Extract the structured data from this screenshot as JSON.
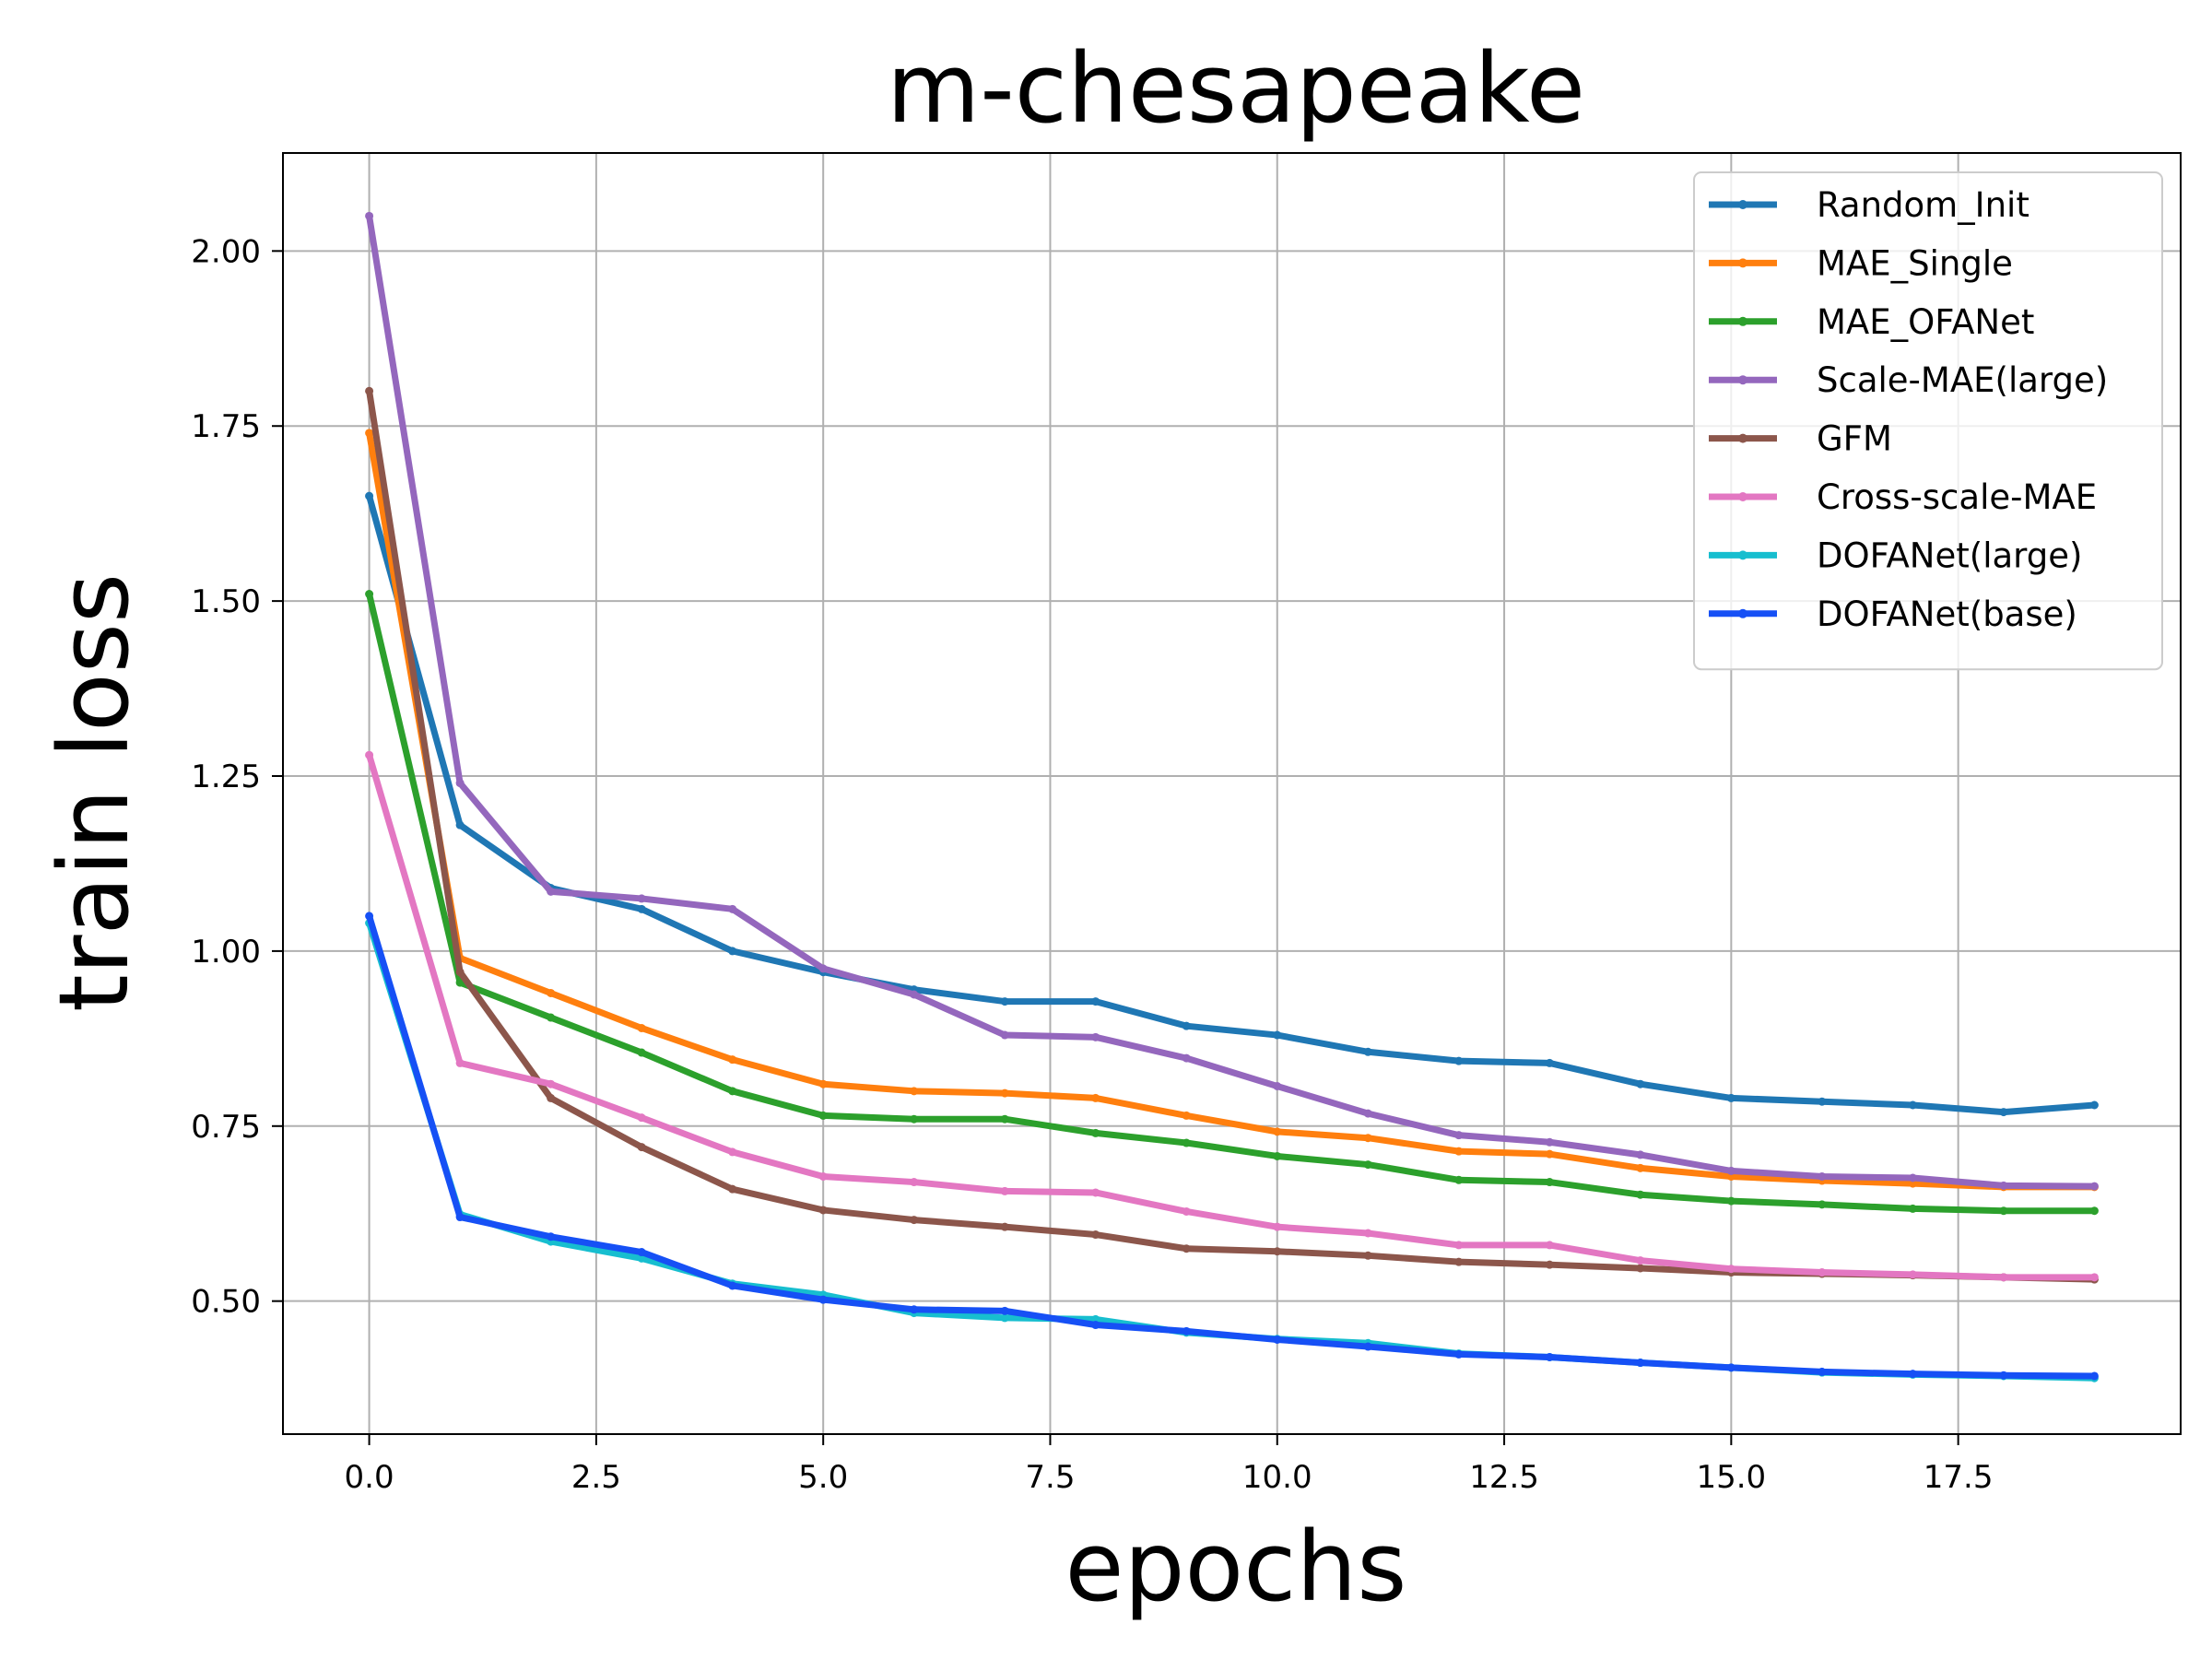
{
  "chart_data": {
    "type": "line",
    "title": "m-chesapeake",
    "xlabel": "epochs",
    "ylabel": "train loss",
    "xlim": [
      -0.95,
      19.95
    ],
    "ylim": [
      0.31,
      2.14
    ],
    "xticks": [
      0.0,
      2.5,
      5.0,
      7.5,
      10.0,
      12.5,
      15.0,
      17.5
    ],
    "xtick_labels": [
      "0.0",
      "2.5",
      "5.0",
      "7.5",
      "10.0",
      "12.5",
      "15.0",
      "17.5"
    ],
    "yticks": [
      0.5,
      0.75,
      1.0,
      1.25,
      1.5,
      1.75,
      2.0
    ],
    "ytick_labels": [
      "0.50",
      "0.75",
      "1.00",
      "1.25",
      "1.50",
      "1.75",
      "2.00"
    ],
    "grid": true,
    "legend_position": "top-right",
    "x": [
      0,
      1,
      2,
      3,
      4,
      5,
      6,
      7,
      8,
      9,
      10,
      11,
      12,
      13,
      14,
      15,
      16,
      17,
      18,
      19
    ],
    "series": [
      {
        "name": "Random_Init",
        "color": "#1f77b4",
        "values": [
          1.65,
          1.18,
          1.09,
          1.06,
          1.0,
          0.97,
          0.945,
          0.928,
          0.928,
          0.893,
          0.88,
          0.856,
          0.843,
          0.84,
          0.81,
          0.79,
          0.785,
          0.78,
          0.77,
          0.78
        ]
      },
      {
        "name": "MAE_Single",
        "color": "#ff7f0e",
        "values": [
          1.74,
          0.99,
          0.94,
          0.89,
          0.845,
          0.81,
          0.8,
          0.797,
          0.79,
          0.765,
          0.742,
          0.733,
          0.714,
          0.71,
          0.69,
          0.678,
          0.672,
          0.668,
          0.663,
          0.663
        ]
      },
      {
        "name": "MAE_OFANet",
        "color": "#2ca02c",
        "values": [
          1.51,
          0.955,
          0.905,
          0.855,
          0.8,
          0.765,
          0.76,
          0.76,
          0.74,
          0.726,
          0.707,
          0.695,
          0.673,
          0.67,
          0.652,
          0.643,
          0.638,
          0.632,
          0.629,
          0.629
        ]
      },
      {
        "name": "Scale-MAE(large)",
        "color": "#9467bd",
        "values": [
          2.05,
          1.24,
          1.085,
          1.075,
          1.06,
          0.975,
          0.938,
          0.88,
          0.877,
          0.847,
          0.807,
          0.768,
          0.737,
          0.727,
          0.709,
          0.686,
          0.678,
          0.676,
          0.665,
          0.664
        ]
      },
      {
        "name": "GFM",
        "color": "#8c564b",
        "values": [
          1.8,
          0.97,
          0.79,
          0.72,
          0.66,
          0.63,
          0.616,
          0.606,
          0.595,
          0.575,
          0.571,
          0.565,
          0.556,
          0.552,
          0.547,
          0.541,
          0.539,
          0.537,
          0.534,
          0.531
        ]
      },
      {
        "name": "Cross-scale-MAE",
        "color": "#e377c2",
        "values": [
          1.28,
          0.84,
          0.81,
          0.762,
          0.713,
          0.678,
          0.67,
          0.657,
          0.655,
          0.628,
          0.606,
          0.597,
          0.58,
          0.58,
          0.558,
          0.546,
          0.541,
          0.538,
          0.534,
          0.534
        ]
      },
      {
        "name": "DOFANet(large)",
        "color": "#17becf",
        "values": [
          1.04,
          0.624,
          0.585,
          0.561,
          0.525,
          0.509,
          0.483,
          0.476,
          0.474,
          0.455,
          0.446,
          0.44,
          0.425,
          0.42,
          0.412,
          0.405,
          0.398,
          0.395,
          0.393,
          0.39
        ]
      },
      {
        "name": "DOFANet(base)",
        "color": "#1650f5",
        "values": [
          1.05,
          0.62,
          0.592,
          0.57,
          0.522,
          0.502,
          0.488,
          0.486,
          0.466,
          0.457,
          0.445,
          0.435,
          0.424,
          0.42,
          0.412,
          0.405,
          0.399,
          0.396,
          0.394,
          0.393
        ]
      }
    ]
  }
}
